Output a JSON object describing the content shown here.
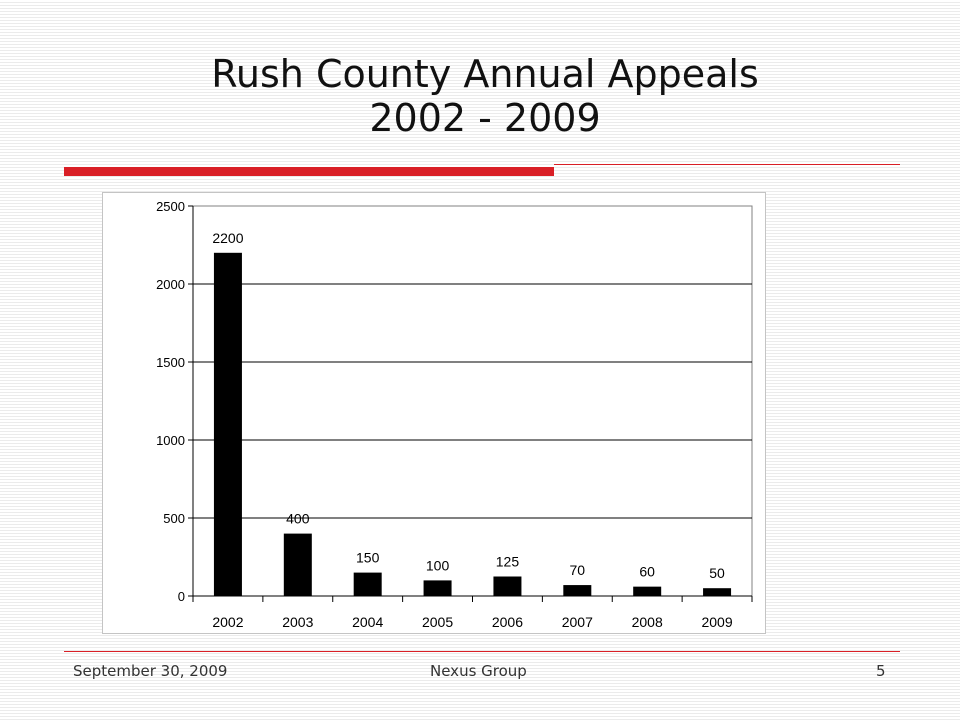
{
  "slide": {
    "title_line1": "Rush County Annual Appeals",
    "title_line2": "2002 - 2009",
    "accent_color": "#d91f26"
  },
  "footer": {
    "date": "September 30, 2009",
    "org": "Nexus Group",
    "page": "5"
  },
  "chart_data": {
    "type": "bar",
    "categories": [
      "2002",
      "2003",
      "2004",
      "2005",
      "2006",
      "2007",
      "2008",
      "2009"
    ],
    "values": [
      2200,
      400,
      150,
      100,
      125,
      70,
      60,
      50
    ],
    "data_labels": [
      "2200",
      "400",
      "150",
      "100",
      "125",
      "70",
      "60",
      "50"
    ],
    "yticks": [
      "0",
      "500",
      "1000",
      "1500",
      "2000",
      "2500"
    ],
    "ylim": [
      0,
      2500
    ],
    "bar_color": "#000000",
    "grid": true,
    "legend": "none"
  }
}
